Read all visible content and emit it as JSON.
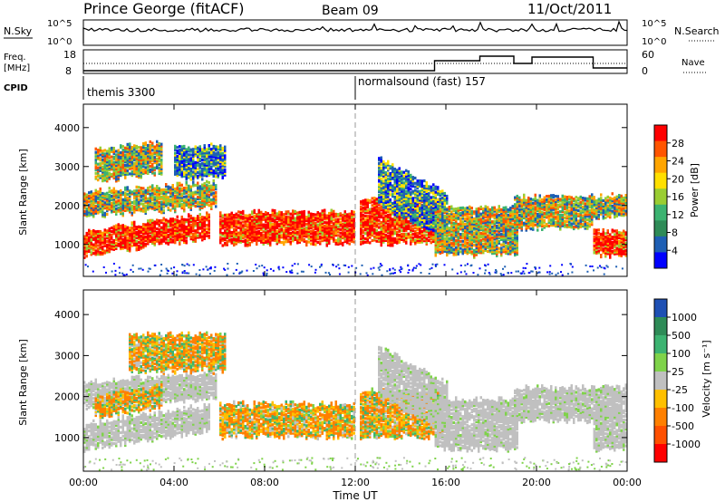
{
  "header": {
    "station": "Prince George (fitACF)",
    "beam": "Beam 09",
    "date": "11/Oct/2011"
  },
  "top_panels": {
    "nsky_label": "N.Sky",
    "nsky_ticks": [
      "10^5",
      "10^0"
    ],
    "nsearch_label": "N.Search",
    "nsearch_ticks": [
      "10^5",
      "10^0"
    ],
    "freq_label": "Freq.",
    "freq_unit": "[MHz]",
    "freq_ticks": [
      "18",
      "8"
    ],
    "nave_label": "Nave",
    "nave_ticks": [
      "60",
      "0"
    ],
    "cpid_label": "CPID",
    "cpid_segments": [
      {
        "label": "themis 3300",
        "start_hour": 0,
        "end_hour": 12
      },
      {
        "label": "normalsound (fast) 157",
        "start_hour": 12,
        "end_hour": 24
      }
    ]
  },
  "chart_data": [
    {
      "type": "heatmap",
      "name": "power-panel",
      "xlabel": "Time UT",
      "ylabel": "Slant Range [km]",
      "xlim": [
        0,
        24
      ],
      "ylim": [
        180,
        4600
      ],
      "x_ticks": [
        "00:00",
        "04:00",
        "08:00",
        "12:00",
        "16:00",
        "20:00",
        "00:00"
      ],
      "y_ticks": [
        1000,
        2000,
        3000,
        4000
      ],
      "colorbar": {
        "label": "Power [dB]",
        "ticks": [
          "28",
          "24",
          "20",
          "16",
          "12",
          "8",
          "4"
        ],
        "colors": [
          "#ff0000",
          "#ff5500",
          "#ffa500",
          "#ffe000",
          "#9acd32",
          "#3cb371",
          "#2e8b57",
          "#1e5fb4",
          "#0000ff"
        ]
      },
      "echo_bands": [
        {
          "t0": 0.0,
          "t1": 5.5,
          "r0": 700,
          "r1": 1300,
          "tilt": 450,
          "value": "strong"
        },
        {
          "t0": 0.0,
          "t1": 5.8,
          "r0": 1700,
          "r1": 2300,
          "tilt": 250,
          "value": "medium"
        },
        {
          "t0": 0.5,
          "t1": 3.5,
          "r0": 2600,
          "r1": 3400,
          "tilt": 200,
          "value": "medium"
        },
        {
          "t0": 4.0,
          "t1": 6.2,
          "r0": 2700,
          "r1": 3500,
          "tilt": 0,
          "value": "weak"
        },
        {
          "t0": 6.0,
          "t1": 11.9,
          "r0": 1000,
          "r1": 1800,
          "tilt": 0,
          "value": "strong"
        },
        {
          "t0": 12.2,
          "t1": 15.8,
          "r0": 1000,
          "r1": 2100,
          "tilt": 0,
          "value": "strong"
        },
        {
          "t0": 13.0,
          "t1": 16.0,
          "r0": 2000,
          "r1": 3200,
          "tilt": -900,
          "value": "weak"
        },
        {
          "t0": 15.5,
          "t1": 19.2,
          "r0": 700,
          "r1": 1900,
          "tilt": 0,
          "value": "medium"
        },
        {
          "t0": 19.0,
          "t1": 22.5,
          "r0": 1400,
          "r1": 2200,
          "tilt": 0,
          "value": "medium"
        },
        {
          "t0": 22.5,
          "t1": 24.0,
          "r0": 700,
          "r1": 1300,
          "tilt": 0,
          "value": "strong"
        },
        {
          "t0": 22.5,
          "t1": 24.0,
          "r0": 1700,
          "r1": 2200,
          "tilt": 0,
          "value": "medium"
        }
      ]
    },
    {
      "type": "heatmap",
      "name": "velocity-panel",
      "xlabel": "Time UT",
      "ylabel": "Slant Range [km]",
      "xlim": [
        0,
        24
      ],
      "ylim": [
        180,
        4600
      ],
      "x_ticks": [
        "00:00",
        "04:00",
        "08:00",
        "12:00",
        "16:00",
        "20:00",
        "00:00"
      ],
      "y_ticks": [
        1000,
        2000,
        3000,
        4000
      ],
      "colorbar": {
        "label": "Velocity [m s⁻¹]",
        "ticks": [
          "1000",
          "500",
          "100",
          "25",
          "-25",
          "-100",
          "-500",
          "-1000"
        ],
        "colors": [
          "#1e50b4",
          "#2e8b57",
          "#3cb371",
          "#7fd34a",
          "#c0c0c0",
          "#ffc000",
          "#ff8000",
          "#ff5000",
          "#ff0000"
        ]
      },
      "echo_bands": [
        {
          "t0": 0.0,
          "t1": 5.5,
          "r0": 700,
          "r1": 1300,
          "tilt": 450,
          "value": "ground"
        },
        {
          "t0": 0.0,
          "t1": 5.8,
          "r0": 1700,
          "r1": 2300,
          "tilt": 250,
          "value": "ground"
        },
        {
          "t0": 0.5,
          "t1": 3.5,
          "r0": 1500,
          "r1": 2000,
          "tilt": 200,
          "value": "negative"
        },
        {
          "t0": 2.0,
          "t1": 6.2,
          "r0": 2600,
          "r1": 3500,
          "tilt": 0,
          "value": "negative"
        },
        {
          "t0": 6.0,
          "t1": 11.9,
          "r0": 1000,
          "r1": 1800,
          "tilt": 0,
          "value": "negative"
        },
        {
          "t0": 12.2,
          "t1": 15.8,
          "r0": 1000,
          "r1": 2100,
          "tilt": 0,
          "value": "negative"
        },
        {
          "t0": 13.0,
          "t1": 16.0,
          "r0": 2000,
          "r1": 3200,
          "tilt": -900,
          "value": "ground"
        },
        {
          "t0": 15.5,
          "t1": 19.2,
          "r0": 700,
          "r1": 1900,
          "tilt": 0,
          "value": "ground"
        },
        {
          "t0": 19.0,
          "t1": 22.5,
          "r0": 1400,
          "r1": 2200,
          "tilt": 0,
          "value": "ground"
        },
        {
          "t0": 22.5,
          "t1": 24.0,
          "r0": 700,
          "r1": 2200,
          "tilt": 0,
          "value": "ground"
        }
      ]
    }
  ]
}
